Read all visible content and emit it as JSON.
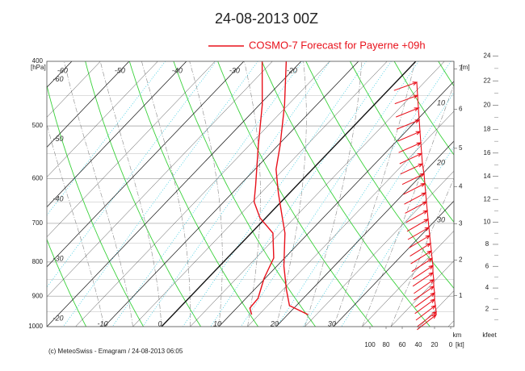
{
  "chart_data": {
    "type": "emagram",
    "title": "24-08-2013  00Z",
    "legend": {
      "label": "COSMO-7 Forecast for Payerne   +09h",
      "color": "#e8101a"
    },
    "y_label": "[hPa]",
    "ylim": [
      400,
      1000
    ],
    "yticks": [
      400,
      500,
      600,
      700,
      800,
      900,
      1000
    ],
    "log_y": true,
    "xlim": [
      -20,
      51
    ],
    "xticks_bottom": [
      -10,
      0,
      10,
      20,
      30
    ],
    "xticks_top": [
      -60,
      -50,
      -40,
      -30,
      -20
    ],
    "xticks_left": [
      -60,
      -50,
      -40,
      -30,
      -20
    ],
    "adiabat_labels": [
      10,
      20,
      30
    ],
    "series": [
      {
        "color": "#e8101a",
        "x": [
          -22.6,
          -15.6,
          -9.6,
          -6.3,
          -1.9,
          2.9,
          5.9,
          11.2,
          15.6,
          18.8,
          23.5
        ],
        "values": [
          400,
          465,
          535,
          581,
          631,
          687,
          724,
          811,
          880,
          930,
          959
        ]
      },
      {
        "color": "#e8101a",
        "x": [
          -26.8,
          -19.5,
          -13.4,
          -7.2,
          -4.7,
          -1.0,
          3.8,
          8.1,
          9.8,
          12.1,
          12.3,
          13.7
        ],
        "values": [
          400,
          465,
          535,
          614,
          650,
          687,
          724,
          789,
          846,
          907,
          938,
          959
        ]
      }
    ],
    "wind": {
      "color": "#e8101a",
      "xlim": [
        0,
        100
      ],
      "xticks": [
        100,
        80,
        60,
        40,
        20,
        0
      ],
      "unit": "[kt]",
      "pressure": [
        430,
        450,
        470,
        490,
        510,
        530,
        550,
        570,
        590,
        610,
        630,
        650,
        670,
        690,
        710,
        730,
        750,
        770,
        790,
        810,
        830,
        850,
        870,
        890,
        910,
        930,
        950,
        960
      ],
      "speed": [
        42,
        41,
        40,
        39,
        38,
        37,
        36,
        35,
        33,
        32,
        31,
        30,
        29,
        28,
        27,
        26,
        25,
        24,
        23,
        22,
        22,
        21,
        21,
        20,
        20,
        19,
        18,
        18
      ],
      "direction": [
        250,
        250,
        248,
        248,
        247,
        246,
        245,
        245,
        244,
        243,
        242,
        242,
        241,
        240,
        240,
        239,
        238,
        238,
        237,
        236,
        236,
        235,
        235,
        234,
        234,
        233,
        232,
        232
      ]
    },
    "height_km": {
      "label": "[m]",
      "unit": "km",
      "ticks": [
        1,
        2,
        3,
        4,
        5,
        6,
        7
      ]
    },
    "height_kfeet": {
      "unit": "kfeet",
      "ticks": [
        2,
        4,
        6,
        8,
        10,
        12,
        14,
        16,
        18,
        20,
        22,
        24
      ]
    },
    "footer": "(c) MeteoSwiss - Emagram  /  24-08-2013  06:05"
  }
}
